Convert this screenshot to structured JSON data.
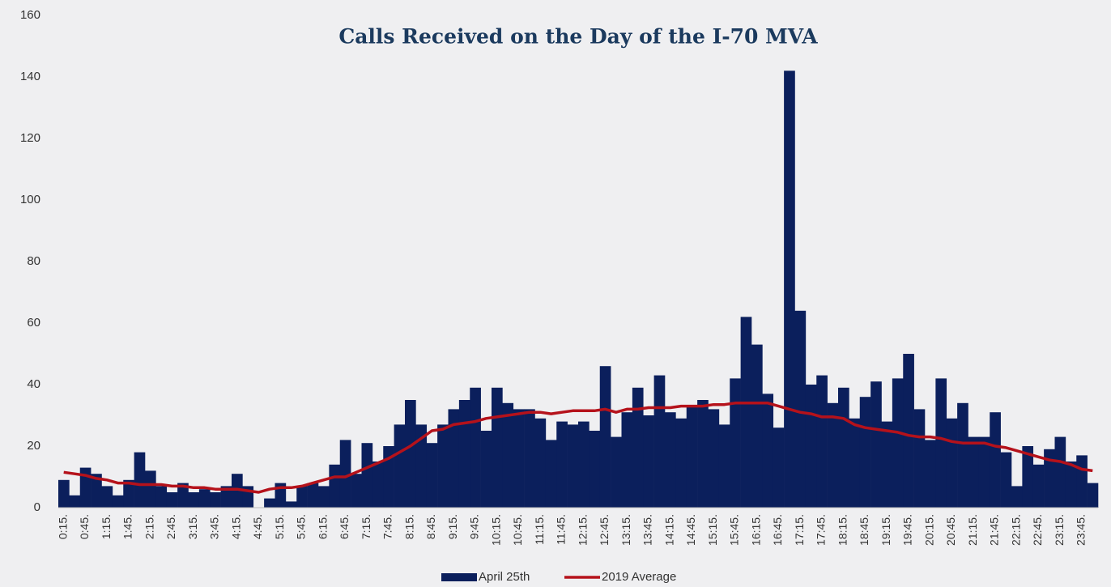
{
  "chart_data": {
    "type": "bar_line",
    "title": "Calls Received on the Day of the I-70 MVA",
    "categories": [
      "0:15.",
      null,
      "0:45.",
      null,
      "1:15.",
      null,
      "1:45.",
      null,
      "2:15.",
      null,
      "2:45.",
      null,
      "3:15.",
      null,
      "3:45.",
      null,
      "4:15.",
      null,
      "4:45.",
      null,
      "5:15.",
      null,
      "5:45.",
      null,
      "6:15.",
      null,
      "6:45.",
      null,
      "7:15.",
      null,
      "7:45.",
      null,
      "8:15.",
      null,
      "8:45.",
      null,
      "9:15.",
      null,
      "9:45.",
      null,
      "10:15.",
      null,
      "10:45.",
      null,
      "11:15.",
      null,
      "11:45.",
      null,
      "12:15.",
      null,
      "12:45.",
      null,
      "13:15.",
      null,
      "13:45.",
      null,
      "14:15.",
      null,
      "14:45.",
      null,
      "15:15.",
      null,
      "15:45.",
      null,
      "16:15.",
      null,
      "16:45.",
      null,
      "17:15.",
      null,
      "17:45.",
      null,
      "18:15.",
      null,
      "18:45.",
      null,
      "19:15.",
      null,
      "19:45.",
      null,
      "20:15.",
      null,
      "20:45.",
      null,
      "21:15.",
      null,
      "21:45.",
      null,
      "22:15.",
      null,
      "22:45.",
      null,
      "23:15.",
      null,
      "23:45.",
      null
    ],
    "series": [
      {
        "name": "April 25th",
        "type": "bar",
        "color": "#0b1f5c",
        "values": [
          9,
          4,
          13,
          11,
          7,
          4,
          9,
          18,
          12,
          7,
          5,
          8,
          5,
          6,
          5,
          7,
          11,
          7,
          0,
          3,
          8,
          2,
          7,
          8,
          7,
          14,
          22,
          11,
          21,
          15,
          20,
          27,
          35,
          27,
          21,
          27,
          32,
          35,
          39,
          25,
          39,
          34,
          32,
          32,
          29,
          22,
          28,
          27,
          28,
          25,
          46,
          23,
          31,
          39,
          30,
          43,
          31,
          29,
          33,
          35,
          32,
          27,
          42,
          62,
          53,
          37,
          26,
          142,
          64,
          40,
          43,
          34,
          39,
          29,
          36,
          41,
          28,
          42,
          50,
          32,
          22,
          42,
          29,
          34,
          23,
          23,
          31,
          18,
          7,
          20,
          14,
          19,
          23,
          15,
          17,
          8
        ]
      },
      {
        "name": "2019 Average",
        "type": "line",
        "color": "#b5121b",
        "values": [
          11.5,
          11,
          10.5,
          9.5,
          9,
          8,
          8,
          7.5,
          7.5,
          7.5,
          7,
          7,
          6.5,
          6.5,
          6,
          6,
          6,
          5.5,
          5,
          6,
          6.5,
          6.5,
          7,
          8,
          9,
          10,
          10,
          11.5,
          13,
          14.5,
          16,
          18,
          20,
          22.5,
          25,
          25.5,
          27,
          27.5,
          28,
          29,
          29.5,
          30,
          30.5,
          31,
          31,
          30.5,
          31,
          31.5,
          31.5,
          31.5,
          32,
          31,
          32,
          32,
          32.5,
          32.5,
          32.5,
          33,
          33,
          33,
          33.5,
          33.5,
          34,
          34,
          34,
          34,
          33,
          32,
          31,
          30.5,
          29.5,
          29.5,
          29,
          27,
          26,
          25.5,
          25,
          24.5,
          23.5,
          23,
          23,
          22.5,
          21.5,
          21,
          21,
          21,
          20,
          19.5,
          18.5,
          17.5,
          16.5,
          15.5,
          15,
          14,
          12.5,
          12
        ]
      }
    ],
    "ylim": [
      0,
      160
    ],
    "yticks": [
      0,
      20,
      40,
      60,
      80,
      100,
      120,
      140,
      160
    ],
    "grid": false,
    "legend": "bottom"
  }
}
